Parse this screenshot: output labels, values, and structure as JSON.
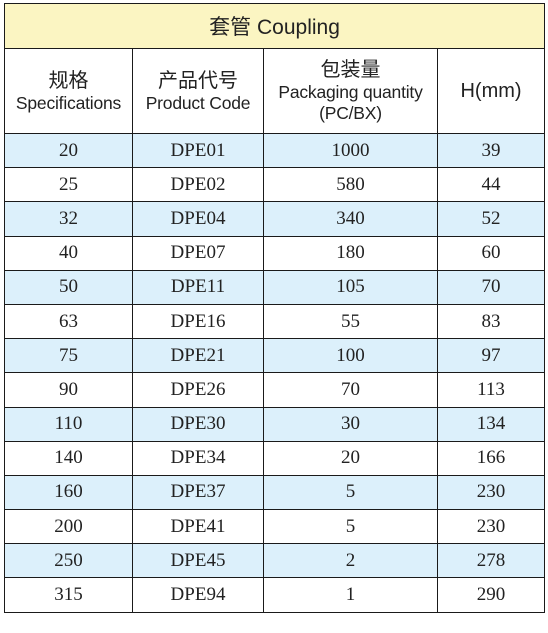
{
  "table": {
    "title": "套管 Coupling",
    "headers": [
      {
        "zh": "规格",
        "en": "Specifications"
      },
      {
        "zh": "产品代号",
        "en": "Product Code"
      },
      {
        "zh": "包装量",
        "en": "Packaging quantity",
        "en2": "(PC/BX)"
      },
      {
        "en": "H(mm)"
      }
    ],
    "rows": [
      [
        "20",
        "DPE01",
        "1000",
        "39"
      ],
      [
        "25",
        "DPE02",
        "580",
        "44"
      ],
      [
        "32",
        "DPE04",
        "340",
        "52"
      ],
      [
        "40",
        "DPE07",
        "180",
        "60"
      ],
      [
        "50",
        "DPE11",
        "105",
        "70"
      ],
      [
        "63",
        "DPE16",
        "55",
        "83"
      ],
      [
        "75",
        "DPE21",
        "100",
        "97"
      ],
      [
        "90",
        "DPE26",
        "70",
        "113"
      ],
      [
        "110",
        "DPE30",
        "30",
        "134"
      ],
      [
        "140",
        "DPE34",
        "20",
        "166"
      ],
      [
        "160",
        "DPE37",
        "5",
        "230"
      ],
      [
        "200",
        "DPE41",
        "5",
        "230"
      ],
      [
        "250",
        "DPE45",
        "2",
        "278"
      ],
      [
        "315",
        "DPE94",
        "1",
        "290"
      ]
    ],
    "colors": {
      "title_bg": "#fbf5c2",
      "stripe_bg": "#dcf0fb",
      "border": "#1a1a1a"
    }
  }
}
